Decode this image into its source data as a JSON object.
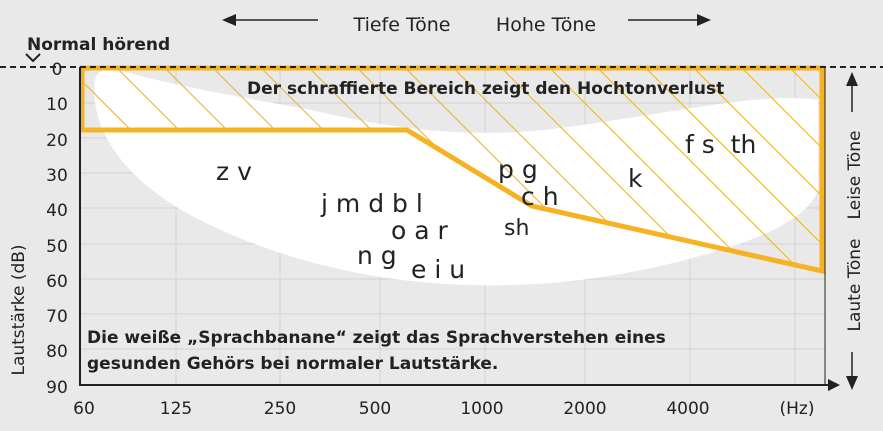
{
  "header": {
    "low_tones": "Tiefe Töne",
    "high_tones": "Hohe Töne",
    "normal_hearing": "Normal hörend"
  },
  "axes": {
    "y_label": "Lautstärke (dB)",
    "y_ticks": [
      "0",
      "10",
      "20",
      "30",
      "40",
      "50",
      "60",
      "70",
      "80",
      "90"
    ],
    "x_ticks": [
      "60",
      "125",
      "250",
      "500",
      "1000",
      "2000",
      "4000"
    ],
    "x_unit": "(Hz)",
    "right_top": "Leise Töne",
    "right_bottom": "Laute Töne"
  },
  "annotations": {
    "hatched": "Der schraffierte Bereich zeigt den Hochtonverlust",
    "banana_line1": "Die weiße „Sprachbanane“ zeigt das Sprachverstehen eines",
    "banana_line2": "gesunden Gehörs bei normaler Lautstärke."
  },
  "phonemes": {
    "zv": "z v",
    "jmdbl": "j m d b l",
    "oar": "o a r",
    "ng": "n g",
    "eiu": "e i u",
    "pg": "p g",
    "ch": "c h",
    "sh": "sh",
    "k": "k",
    "fsth": "f s  th"
  },
  "colors": {
    "hatch": "#f5b323",
    "banana": "#ffffff",
    "background": "#e9e9e9",
    "grid": "#d3d3d3"
  }
}
